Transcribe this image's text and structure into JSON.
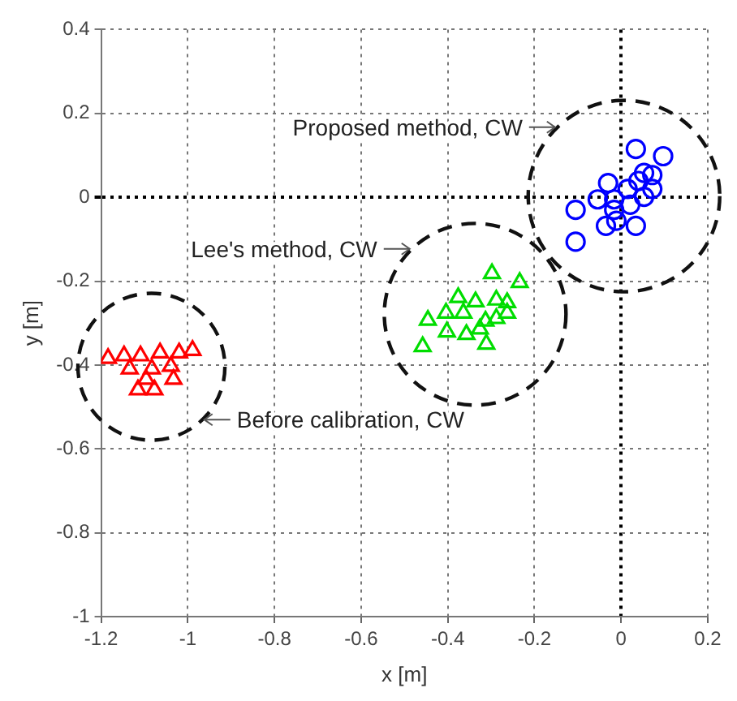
{
  "chart_data": {
    "type": "scatter",
    "xlabel": "x [m]",
    "ylabel": "y [m]",
    "xlim": [
      -1.2,
      0.2
    ],
    "ylim": [
      -1,
      0.4
    ],
    "xticks": [
      -1.2,
      -1,
      -0.8,
      -0.6,
      -0.4,
      -0.2,
      0,
      0.2
    ],
    "yticks": [
      -1,
      -0.8,
      -0.6,
      -0.4,
      -0.2,
      0,
      0.2,
      0.4
    ],
    "grid": true,
    "legend": false,
    "series": [
      {
        "color": "#0000ff",
        "marker": "circle",
        "x": [
          0.097,
          0.034,
          0.053,
          0.072,
          0.04,
          0.072,
          -0.03,
          -0.054,
          -0.016,
          -0.105,
          -0.016,
          -0.035,
          -0.011,
          0.034,
          -0.105,
          0.021,
          0.053,
          0.015
        ],
        "values": [
          0.098,
          0.115,
          0.058,
          0.053,
          0.039,
          0.02,
          0.034,
          -0.005,
          -0.005,
          -0.03,
          -0.03,
          -0.068,
          -0.056,
          -0.068,
          -0.106,
          -0.018,
          0.001,
          0.02
        ]
      },
      {
        "color": "#00dd00",
        "marker": "triangle",
        "x": [
          -0.298,
          -0.234,
          -0.376,
          -0.336,
          -0.288,
          -0.263,
          -0.446,
          -0.404,
          -0.364,
          -0.263,
          -0.313,
          -0.402,
          -0.357,
          -0.326,
          -0.458,
          -0.311,
          -0.288
        ],
        "values": [
          -0.182,
          -0.203,
          -0.239,
          -0.249,
          -0.245,
          -0.251,
          -0.293,
          -0.276,
          -0.276,
          -0.276,
          -0.295,
          -0.321,
          -0.327,
          -0.314,
          -0.356,
          -0.35,
          -0.289
        ]
      },
      {
        "color": "#ff0000",
        "marker": "triangle",
        "x": [
          -1.184,
          -1.147,
          -1.109,
          -1.064,
          -1.02,
          -0.989,
          -1.134,
          -1.083,
          -1.039,
          -1.115,
          -1.077,
          -1.033,
          -1.096
        ],
        "values": [
          -0.384,
          -0.378,
          -0.378,
          -0.371,
          -0.371,
          -0.365,
          -0.409,
          -0.409,
          -0.403,
          -0.459,
          -0.459,
          -0.434,
          -0.434
        ]
      }
    ],
    "annotations": [
      "Proposed method, CW",
      "Lee's method, CW",
      "Before calibration, CW"
    ]
  }
}
